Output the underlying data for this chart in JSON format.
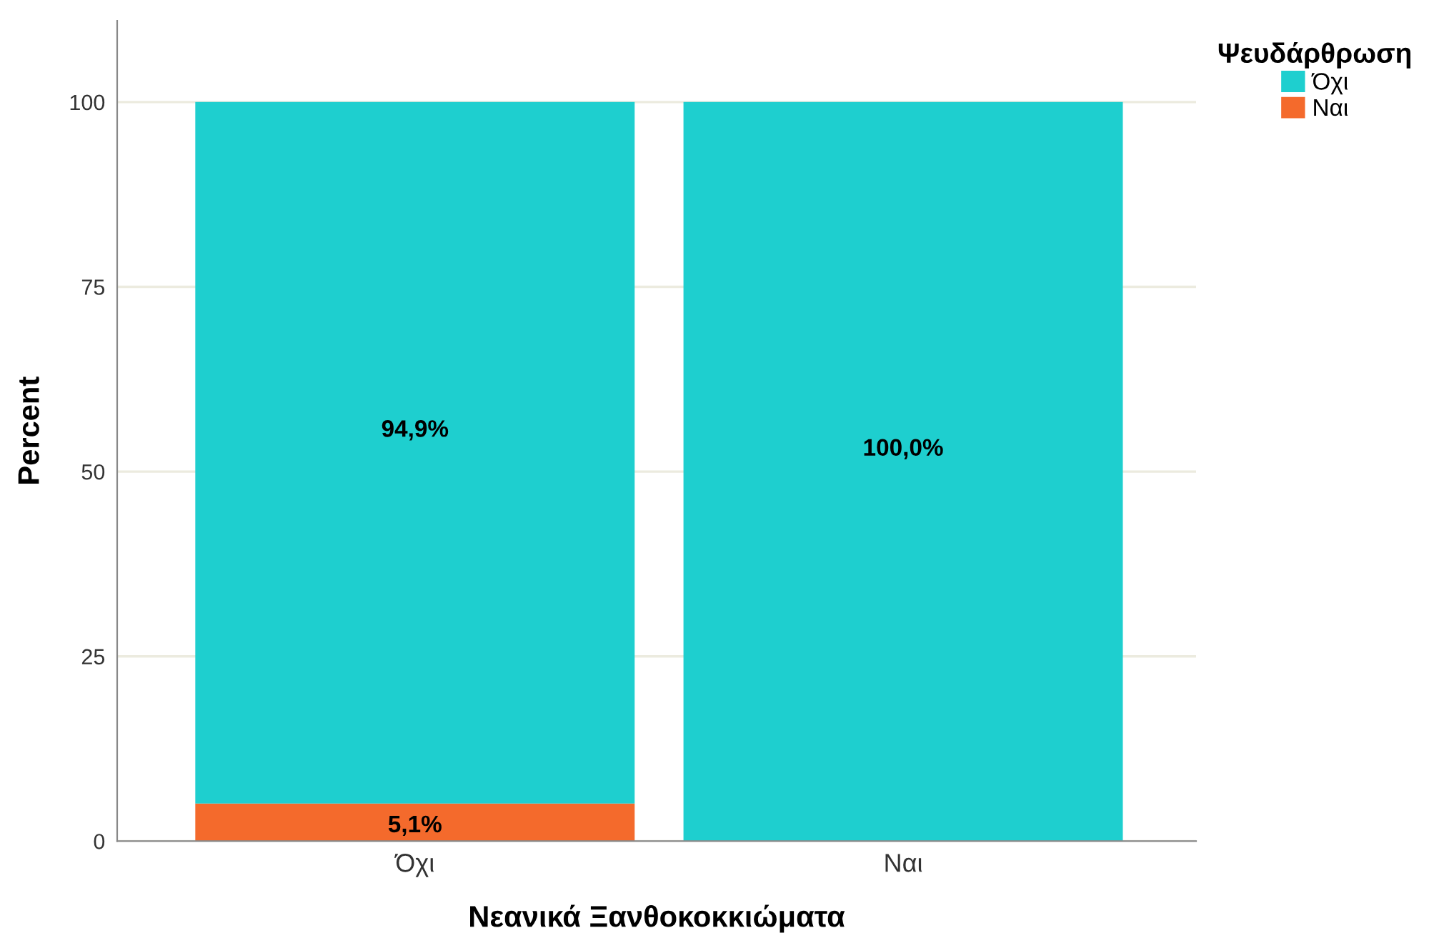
{
  "chart_data": {
    "type": "bar",
    "stacked": true,
    "xlabel": "Νεανικά Ξανθοκοκκιώματα",
    "ylabel": "Percent",
    "legend_title": "Ψευδάρθρωση",
    "categories": [
      "Όχι",
      "Ναι"
    ],
    "series": [
      {
        "name": "Ναι",
        "color": "#f46a2c",
        "values": [
          5.1,
          0
        ],
        "value_labels": [
          "5,1%",
          null
        ]
      },
      {
        "name": "Όχι",
        "color": "#1ecfcf",
        "values": [
          94.9,
          100
        ],
        "value_labels": [
          "94,9%",
          "100,0%"
        ]
      }
    ],
    "ylim": [
      0,
      111
    ],
    "yticks": [
      0,
      25,
      50,
      75,
      100
    ],
    "grid": "y",
    "legend": "top right"
  }
}
